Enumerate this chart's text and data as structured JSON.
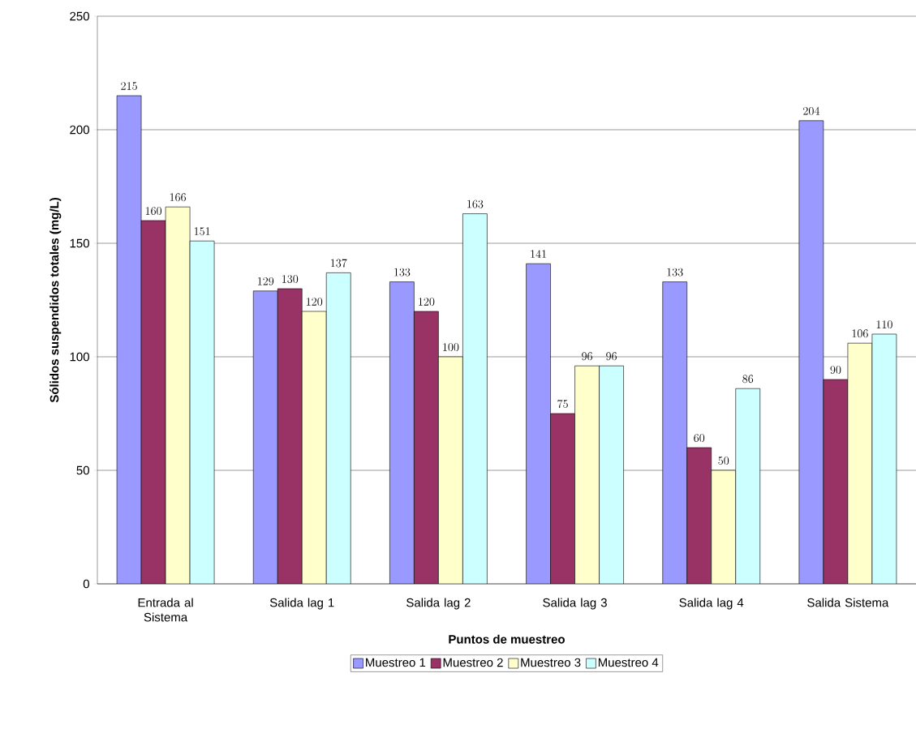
{
  "chart_data": {
    "type": "bar",
    "xlabel": "Puntos de muestreo",
    "ylabel": "Sólidos suspendidos totales (mg/L)",
    "categories": [
      "Entrada al Sistema",
      "Salida lag 1",
      "Salida lag 2",
      "Salida lag 3",
      "Salida lag 4",
      "Salida Sistema"
    ],
    "series": [
      {
        "name": "Muestreo 1",
        "color": "#9999ff",
        "values": [
          215,
          129,
          133,
          141,
          133,
          204
        ]
      },
      {
        "name": "Muestreo 2",
        "color": "#993366",
        "values": [
          160,
          130,
          120,
          75,
          60,
          90
        ]
      },
      {
        "name": "Muestreo 3",
        "color": "#ffffcc",
        "values": [
          166,
          120,
          100,
          96,
          50,
          106
        ]
      },
      {
        "name": "Muestreo 4",
        "color": "#ccffff",
        "values": [
          151,
          137,
          163,
          96,
          86,
          110
        ]
      }
    ],
    "ylim": [
      0,
      250
    ],
    "yticks": [
      0,
      50,
      100,
      150,
      200,
      250
    ],
    "grid": "y",
    "legend": "bottom",
    "data_labels": true
  }
}
